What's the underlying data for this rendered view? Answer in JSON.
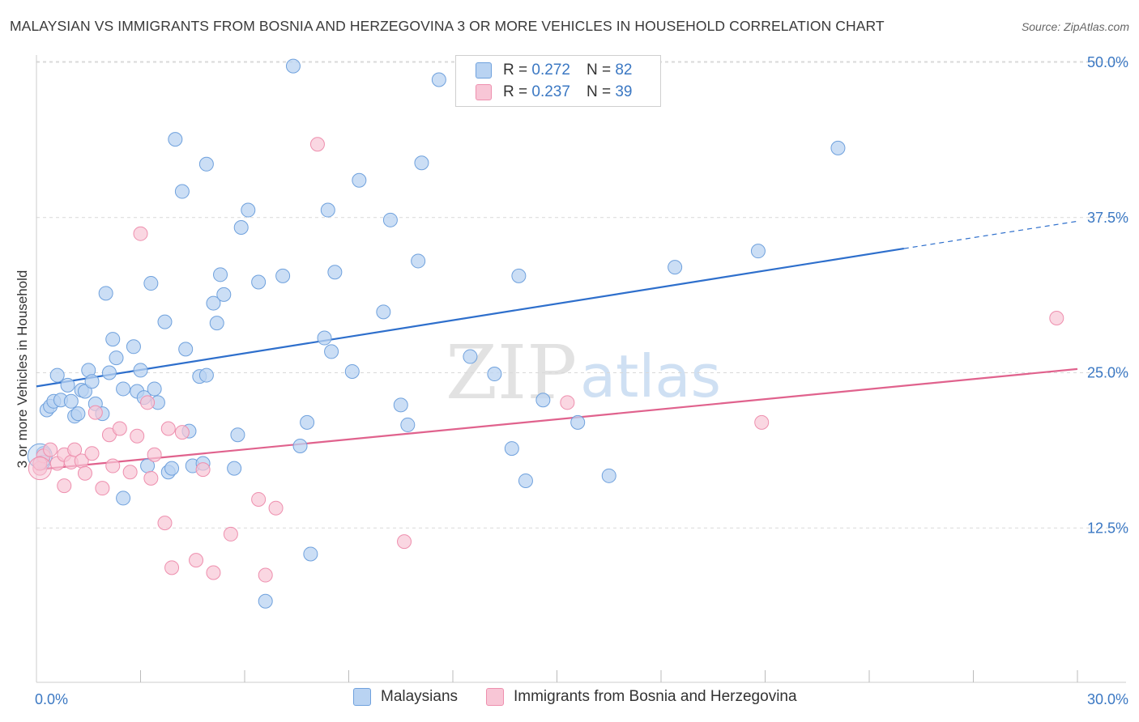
{
  "title": "MALAYSIAN VS IMMIGRANTS FROM BOSNIA AND HERZEGOVINA 3 OR MORE VEHICLES IN HOUSEHOLD CORRELATION CHART",
  "source": "Source: ZipAtlas.com",
  "watermark": {
    "zip": "ZIP",
    "atlas": "atlas"
  },
  "legend": {
    "r_label": "R =",
    "n_label": "N =",
    "rows": [
      {
        "r": "0.272",
        "n": "82"
      },
      {
        "r": "0.237",
        "n": "39"
      }
    ]
  },
  "colors": {
    "blue_fill": "#b9d3f2",
    "blue_stroke": "#6fa1dd",
    "blue_line": "#2e6fcc",
    "pink_fill": "#f8c6d6",
    "pink_stroke": "#ee8fae",
    "pink_line": "#e0628d",
    "tick_label": "#3b78c3",
    "grid": "#d9d9d9"
  },
  "chart_data": {
    "type": "scatter",
    "title": "MALAYSIAN VS IMMIGRANTS FROM BOSNIA AND HERZEGOVINA 3 OR MORE VEHICLES IN HOUSEHOLD CORRELATION CHART",
    "xlabel": "",
    "ylabel": "3 or more Vehicles in Household",
    "xlim": [
      0,
      30
    ],
    "ylim": [
      0,
      50
    ],
    "x_tick_labels": [
      "0.0%",
      "30.0%"
    ],
    "y_ticks": [
      12.5,
      25.0,
      37.5,
      50.0
    ],
    "y_tick_labels": [
      "12.5%",
      "25.0%",
      "37.5%",
      "50.0%"
    ],
    "grid": "horizontal dashed",
    "legend_placement": "top-center",
    "series": [
      {
        "name": "Malaysians",
        "color": "#6fa1dd",
        "r": 0.272,
        "n": 82,
        "trend": {
          "x0": 0,
          "y0": 23.9,
          "x1": 25,
          "y1": 35.0,
          "dashed_to_x": 30,
          "dashed_to_y": 37.2
        },
        "points": [
          [
            0.2,
            18.5
          ],
          [
            0.2,
            17.8
          ],
          [
            0.3,
            22.0
          ],
          [
            0.4,
            22.3
          ],
          [
            0.5,
            22.7
          ],
          [
            0.6,
            24.8
          ],
          [
            0.7,
            22.8
          ],
          [
            0.9,
            24.0
          ],
          [
            1.0,
            22.7
          ],
          [
            1.1,
            21.5
          ],
          [
            1.2,
            21.7
          ],
          [
            1.3,
            23.6
          ],
          [
            1.4,
            23.5
          ],
          [
            1.5,
            25.2
          ],
          [
            1.6,
            24.3
          ],
          [
            1.7,
            22.5
          ],
          [
            1.9,
            21.7
          ],
          [
            2.0,
            31.4
          ],
          [
            2.1,
            25.0
          ],
          [
            2.2,
            27.7
          ],
          [
            2.3,
            26.2
          ],
          [
            2.5,
            23.7
          ],
          [
            2.5,
            14.9
          ],
          [
            2.8,
            27.1
          ],
          [
            2.9,
            23.5
          ],
          [
            3.0,
            25.2
          ],
          [
            3.1,
            23.0
          ],
          [
            3.2,
            17.5
          ],
          [
            3.3,
            32.2
          ],
          [
            3.4,
            23.7
          ],
          [
            3.5,
            22.6
          ],
          [
            3.7,
            29.1
          ],
          [
            3.8,
            17.0
          ],
          [
            3.9,
            17.3
          ],
          [
            4.0,
            43.8
          ],
          [
            4.2,
            39.6
          ],
          [
            4.3,
            26.9
          ],
          [
            4.4,
            20.3
          ],
          [
            4.5,
            17.5
          ],
          [
            4.7,
            24.7
          ],
          [
            4.8,
            17.7
          ],
          [
            4.9,
            24.8
          ],
          [
            4.9,
            41.8
          ],
          [
            5.1,
            30.6
          ],
          [
            5.2,
            29.0
          ],
          [
            5.3,
            32.9
          ],
          [
            5.4,
            31.3
          ],
          [
            5.7,
            17.3
          ],
          [
            5.8,
            20.0
          ],
          [
            5.9,
            36.7
          ],
          [
            6.1,
            38.1
          ],
          [
            6.4,
            32.3
          ],
          [
            6.6,
            6.6
          ],
          [
            7.1,
            32.8
          ],
          [
            7.4,
            49.7
          ],
          [
            7.6,
            19.1
          ],
          [
            7.8,
            21.0
          ],
          [
            7.9,
            10.4
          ],
          [
            8.3,
            27.8
          ],
          [
            8.4,
            38.1
          ],
          [
            8.5,
            26.7
          ],
          [
            8.6,
            33.1
          ],
          [
            9.1,
            25.1
          ],
          [
            9.3,
            40.5
          ],
          [
            10.0,
            29.9
          ],
          [
            10.2,
            37.3
          ],
          [
            10.5,
            22.4
          ],
          [
            10.7,
            20.8
          ],
          [
            11.0,
            34.0
          ],
          [
            11.1,
            41.9
          ],
          [
            11.6,
            48.6
          ],
          [
            12.5,
            26.3
          ],
          [
            13.2,
            24.9
          ],
          [
            13.7,
            18.9
          ],
          [
            13.9,
            32.8
          ],
          [
            14.1,
            16.3
          ],
          [
            14.6,
            22.8
          ],
          [
            15.6,
            21.0
          ],
          [
            16.5,
            16.7
          ],
          [
            18.4,
            33.5
          ],
          [
            20.8,
            34.8
          ],
          [
            23.1,
            43.1
          ]
        ]
      },
      {
        "name": "Immigrants from Bosnia and Herzegovina",
        "color": "#ee8fae",
        "r": 0.237,
        "n": 39,
        "trend": {
          "x0": 0,
          "y0": 17.2,
          "x1": 30,
          "y1": 25.3
        },
        "points": [
          [
            0.1,
            17.3
          ],
          [
            0.2,
            18.3
          ],
          [
            0.4,
            18.8
          ],
          [
            0.6,
            17.7
          ],
          [
            0.8,
            18.4
          ],
          [
            0.8,
            15.9
          ],
          [
            1.0,
            17.8
          ],
          [
            1.1,
            18.8
          ],
          [
            1.3,
            17.9
          ],
          [
            1.4,
            16.9
          ],
          [
            1.6,
            18.5
          ],
          [
            1.7,
            21.8
          ],
          [
            1.9,
            15.7
          ],
          [
            2.1,
            20.0
          ],
          [
            2.2,
            17.5
          ],
          [
            2.4,
            20.5
          ],
          [
            2.7,
            17.0
          ],
          [
            2.9,
            19.9
          ],
          [
            3.0,
            36.2
          ],
          [
            3.2,
            22.6
          ],
          [
            3.3,
            16.5
          ],
          [
            3.4,
            18.4
          ],
          [
            3.7,
            12.9
          ],
          [
            3.8,
            20.5
          ],
          [
            3.9,
            9.3
          ],
          [
            4.2,
            20.2
          ],
          [
            4.6,
            9.9
          ],
          [
            4.8,
            17.2
          ],
          [
            5.1,
            8.9
          ],
          [
            5.6,
            12.0
          ],
          [
            6.4,
            14.8
          ],
          [
            6.6,
            8.7
          ],
          [
            6.9,
            14.1
          ],
          [
            8.1,
            43.4
          ],
          [
            10.6,
            11.4
          ],
          [
            15.3,
            22.6
          ],
          [
            20.9,
            21.0
          ],
          [
            29.4,
            29.4
          ],
          [
            0.1,
            17.7
          ]
        ]
      }
    ]
  },
  "axis": {
    "x_min_label": "0.0%",
    "x_max_label": "30.0%"
  }
}
